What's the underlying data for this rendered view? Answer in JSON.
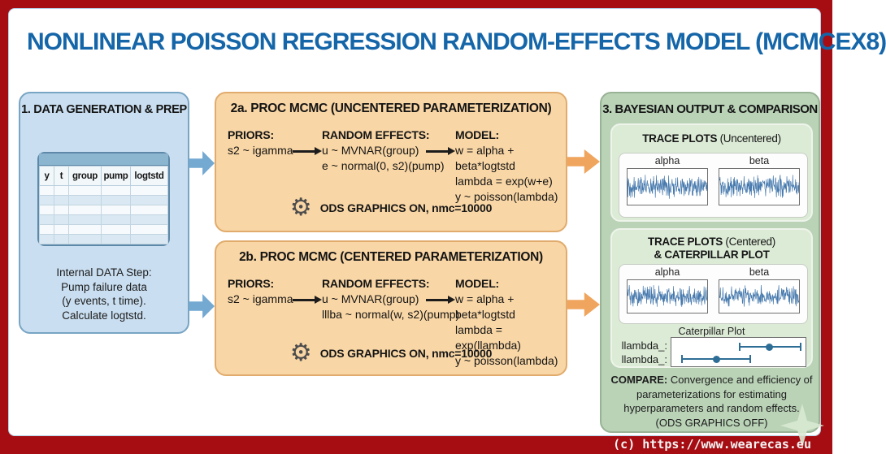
{
  "title": "NONLINEAR POISSON REGRESSION RANDOM-EFFECTS MODEL (MCMCEX8)",
  "copyright": "(c) https://www.wearecas.eu",
  "colors": {
    "frame_red": "#a60d12",
    "title_blue": "#1566a9",
    "panel_blue": "#c9def0",
    "panel_orange": "#f9d6a5",
    "panel_green": "#bad3b7",
    "trace_blue": "#4679ad"
  },
  "panel1": {
    "heading": "1. DATA GENERATION & PREP",
    "table_columns": [
      "y",
      "t",
      "group",
      "pump",
      "logtstd"
    ],
    "table_empty_rows": 6,
    "caption_lines": [
      "Internal DATA Step:",
      "Pump failure data",
      "(y events, t time).",
      "Calculate logtstd."
    ]
  },
  "panel2a": {
    "heading": "2a. PROC MCMC (UNCENTERED PARAMETERIZATION)",
    "priors_label": "PRIORS:",
    "priors_lines": [
      "s2 ~ igamma"
    ],
    "random_effects_label": "RANDOM EFFECTS:",
    "random_effects_lines": [
      "u ~ MVNAR(group)",
      "e ~ normal(0, s2)(pump)"
    ],
    "model_label": "MODEL:",
    "model_lines": [
      "w = alpha + beta*logtstd",
      "lambda = exp(w+e)",
      "y ~ poisson(lambda)"
    ],
    "ods_note": "ODS GRAPHICS ON, nmc=10000"
  },
  "panel2b": {
    "heading": "2b. PROC MCMC (CENTERED PARAMETERIZATION)",
    "priors_label": "PRIORS:",
    "priors_lines": [
      "s2 ~ igamma"
    ],
    "random_effects_label": "RANDOM EFFECTS:",
    "random_effects_lines": [
      "u ~ MVNAR(group)",
      "lllba ~ normal(w, s2)(pump)"
    ],
    "model_label": "MODEL:",
    "model_lines": [
      "w = alpha + beta*logtstd",
      "lambda = exp(llambda)",
      "y ~ poisson(lambda)"
    ],
    "ods_note": "ODS GRAPHICS ON, nmc=10000"
  },
  "panel3": {
    "heading": "3. BAYESIAN OUTPUT & COMPARISON",
    "trace_uncentered": {
      "title_bold": "TRACE PLOTS",
      "title_rest": " (Uncentered)",
      "plot_labels": [
        "alpha",
        "beta"
      ]
    },
    "trace_centered": {
      "title_bold": "TRACE PLOTS",
      "title_rest": " (Centered)",
      "title_line2": "& CATERPILLAR PLOT",
      "plot_labels": [
        "alpha",
        "beta"
      ]
    },
    "caterpillar": {
      "title": "Caterpillar Plot",
      "rows": [
        {
          "label": "llambda_:",
          "low": 50,
          "mid": 72,
          "high": 95
        },
        {
          "label": "llambda_:",
          "low": 8,
          "mid": 33,
          "high": 58
        }
      ]
    },
    "compare_bold": "COMPARE:",
    "compare_text": " Convergence and efficiency of parameterizations for estimating hyperparameters and random effects.",
    "compare_last_line": "(ODS GRAPHICS OFF)"
  }
}
